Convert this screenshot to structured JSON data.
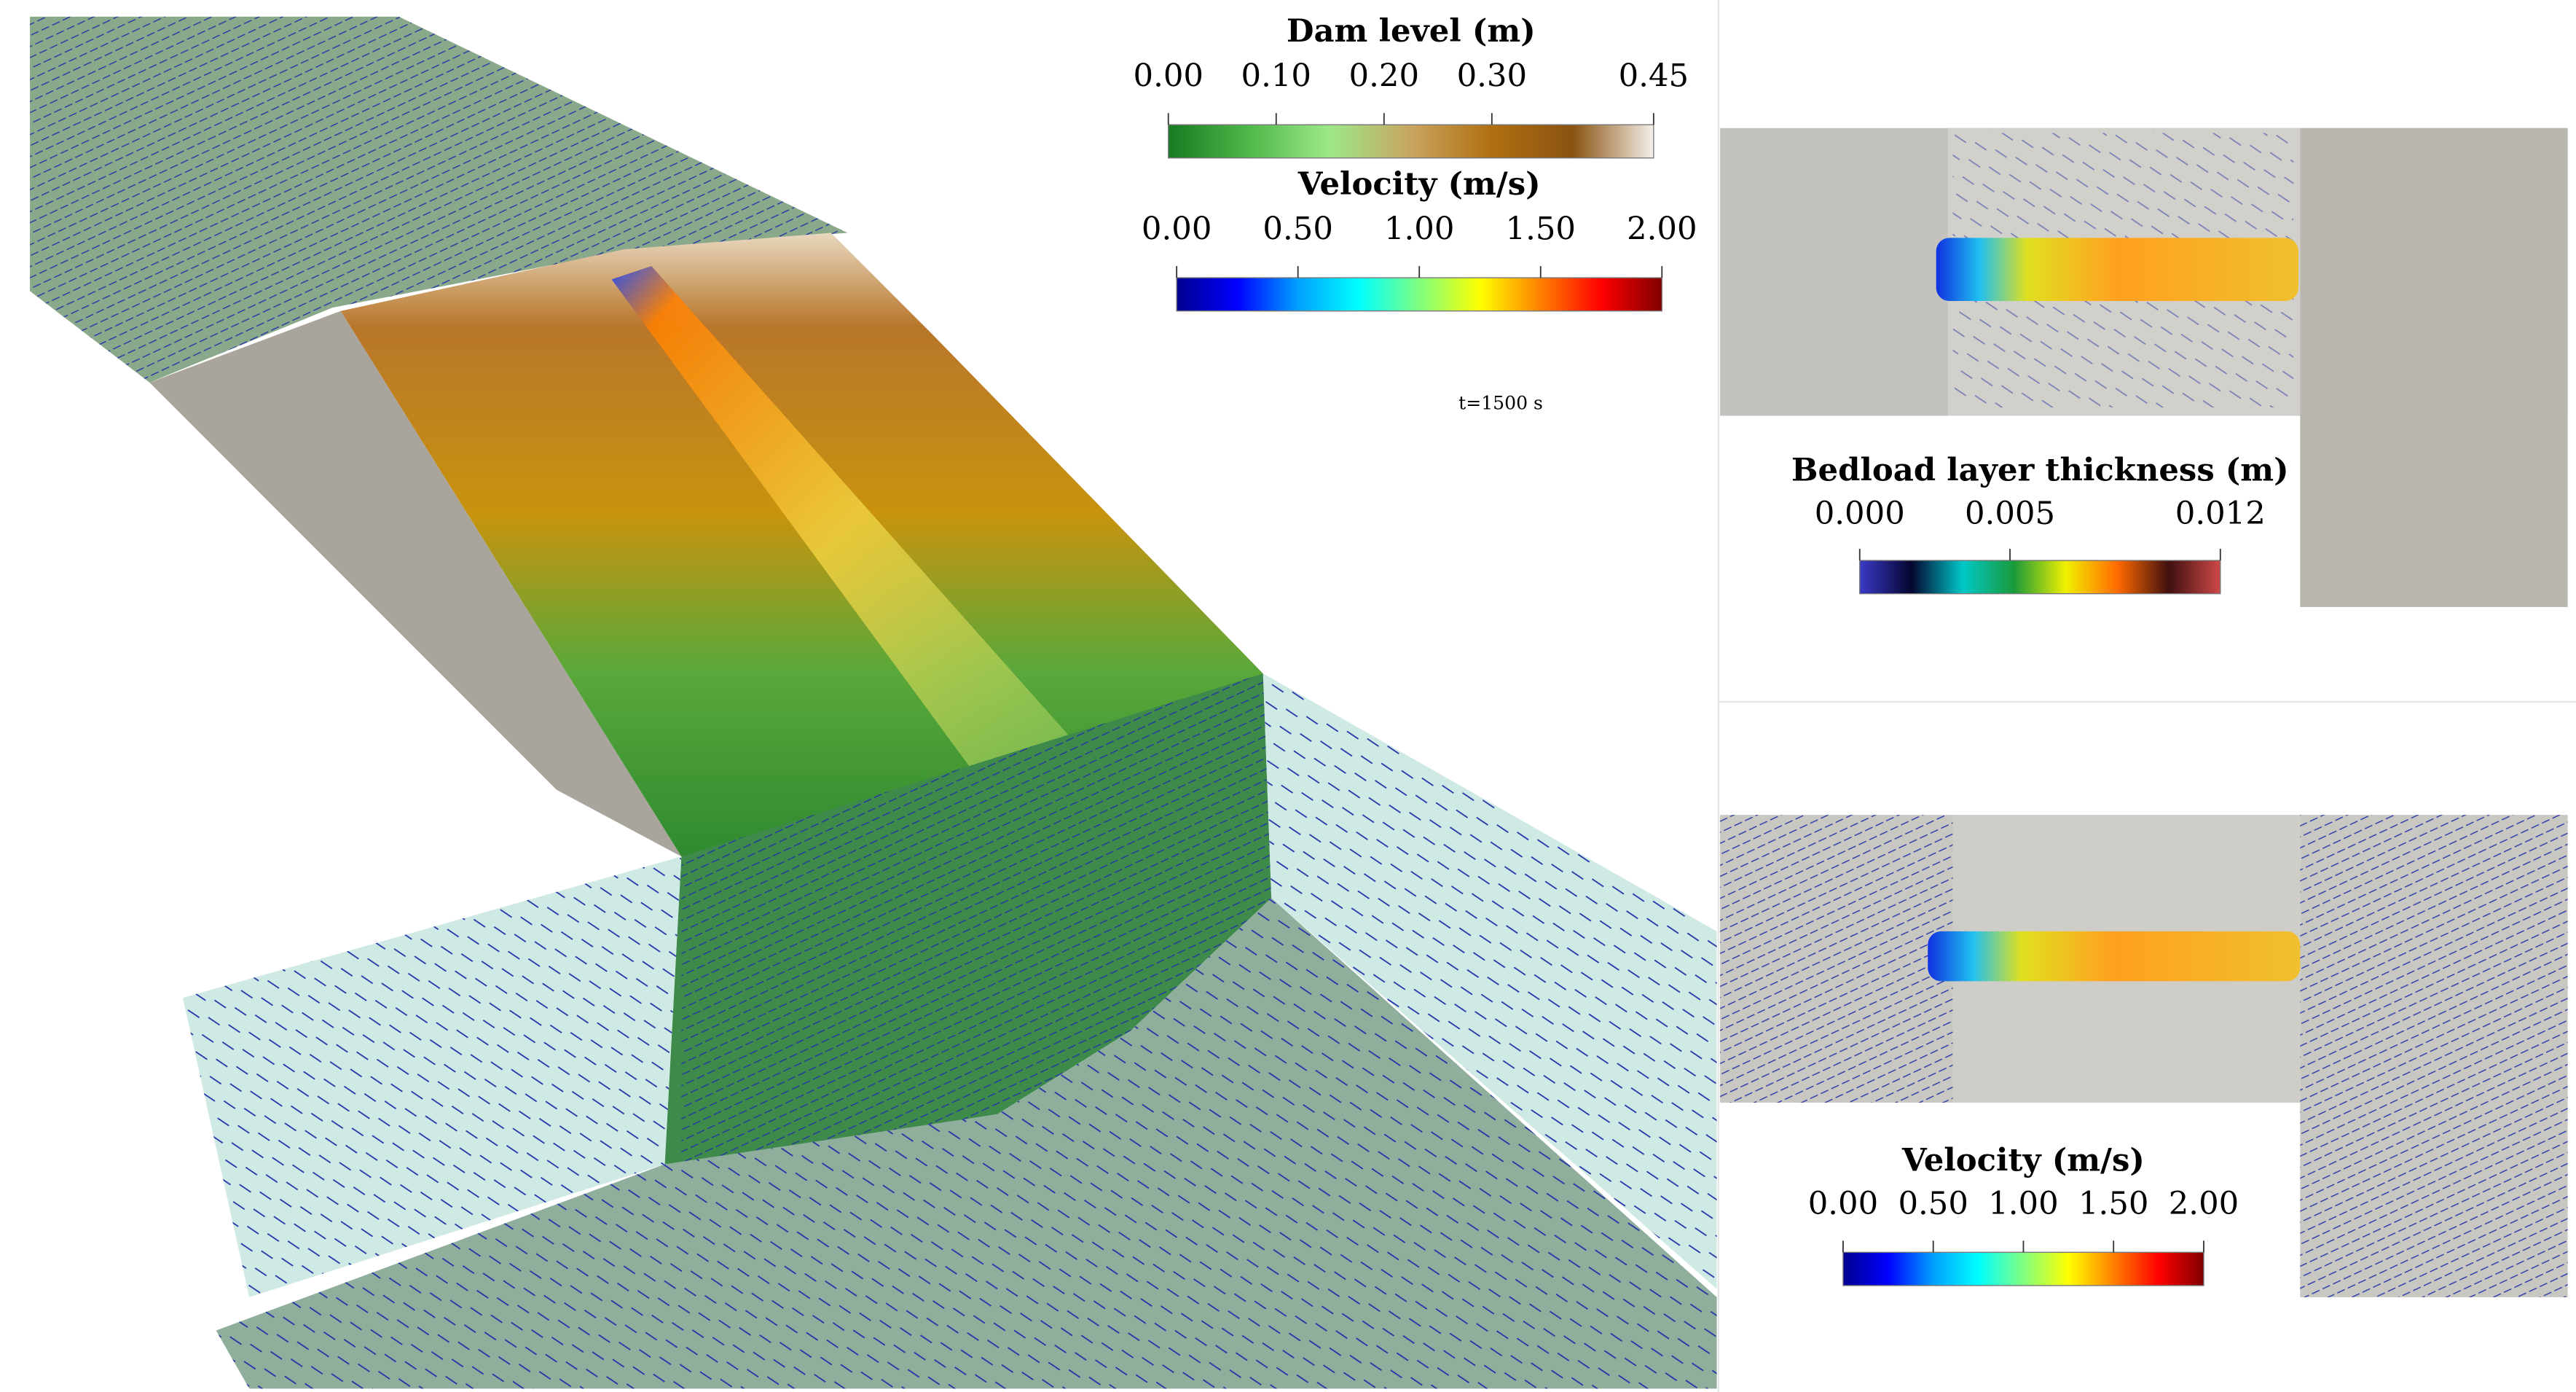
{
  "figure": {
    "annotation": "t=1500 s",
    "colorbars": [
      {
        "title": "Dam level (m)",
        "range": [
          0,
          0.45
        ],
        "ticks": [
          {
            "value": 0,
            "label": "0.00"
          },
          {
            "value": 0.1,
            "label": "0.10"
          },
          {
            "value": 0.2,
            "label": "0.20"
          },
          {
            "value": 0.3,
            "label": "0.30"
          },
          {
            "value": 0.45,
            "label": "0.45"
          }
        ],
        "colors": [
          "#187a22",
          "#4fb84a",
          "#9ee88a",
          "#c9a560",
          "#b06f10",
          "#8a5312",
          "#f4f0ea"
        ]
      },
      {
        "title": "Velocity (m/s)",
        "range": [
          0,
          2
        ],
        "ticks": [
          {
            "value": 0,
            "label": "0.00"
          },
          {
            "value": 0.5,
            "label": "0.50"
          },
          {
            "value": 1,
            "label": "1.00"
          },
          {
            "value": 1.5,
            "label": "1.50"
          },
          {
            "value": 2,
            "label": "2.00"
          }
        ],
        "colors": [
          "#00008f",
          "#0000ff",
          "#00a0ff",
          "#00ffff",
          "#80ff80",
          "#ffff00",
          "#ff8000",
          "#ff0000",
          "#800000"
        ]
      },
      {
        "title": "Bedload layer thickness (m)",
        "range": [
          0,
          0.012
        ],
        "ticks": [
          {
            "value": 0,
            "label": "0.000"
          },
          {
            "value": 0.005,
            "label": "0.005"
          },
          {
            "value": 0.012,
            "label": "0.012"
          }
        ],
        "colors": [
          "#3a3ac8",
          "#050530",
          "#00c8c8",
          "#1a9a3a",
          "#f0f000",
          "#ff6a00",
          "#401010",
          "#d04848"
        ]
      },
      {
        "title": "Velocity (m/s)",
        "range": [
          0,
          2
        ],
        "ticks": [
          {
            "value": 0,
            "label": "0.00"
          },
          {
            "value": 0.5,
            "label": "0.50"
          },
          {
            "value": 1,
            "label": "1.00"
          },
          {
            "value": 1.5,
            "label": "1.50"
          },
          {
            "value": 2,
            "label": "2.00"
          }
        ],
        "colors": [
          "#00008f",
          "#0000ff",
          "#00a0ff",
          "#00ffff",
          "#80ff80",
          "#ffff00",
          "#ff8000",
          "#ff0000",
          "#800000"
        ]
      }
    ]
  }
}
